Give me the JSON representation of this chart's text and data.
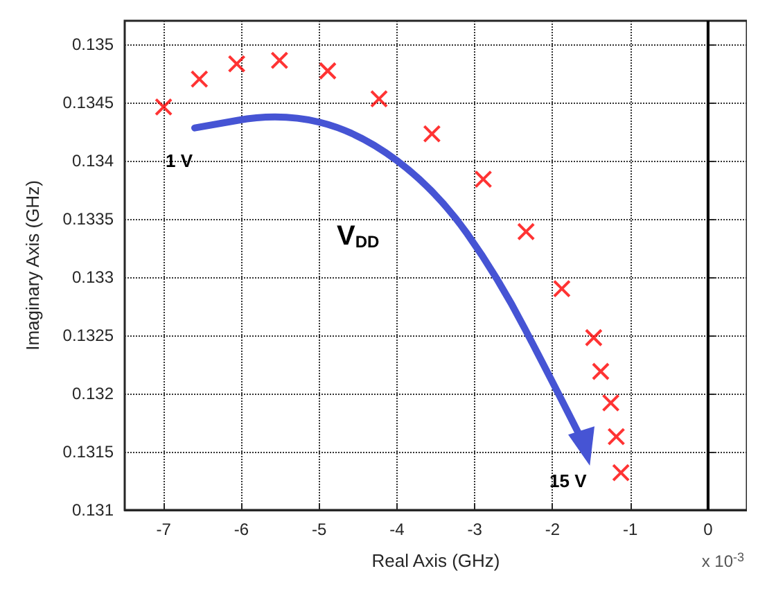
{
  "chart_data": {
    "type": "scatter",
    "xlabel": "Real Axis (GHz)",
    "ylabel": "Imaginary Axis (GHz)",
    "x": [
      -7,
      -6.54,
      -6.06,
      -5.51,
      -4.89,
      -4.23,
      -3.55,
      -2.89,
      -2.34,
      -1.88,
      -1.47,
      -1.38,
      -1.25,
      -1.18,
      -1.12
    ],
    "series": [
      {
        "color": "#ff0000",
        "values": [
          0.13446,
          0.1347,
          0.13483,
          0.13486,
          0.13477,
          0.13453,
          0.13423,
          0.13384,
          0.13339,
          0.1329,
          0.13248,
          0.13219,
          0.13192,
          0.13163,
          0.13132
        ]
      }
    ],
    "marker": "cross",
    "grid": true,
    "xlim": [
      -7.5,
      0.5
    ],
    "xticks": [
      -7,
      -6,
      -5,
      -4,
      -3,
      -2,
      -1,
      0
    ],
    "ylim": [
      0.131,
      0.1352
    ],
    "yticks": [
      0.131,
      0.1315,
      0.132,
      0.1325,
      0.133,
      0.1335,
      0.134,
      0.1345,
      0.135
    ],
    "ref_lines": [
      {
        "axis": "x",
        "value": 0,
        "color": "#000000",
        "line_style": "solid"
      }
    ],
    "annotations": [
      "1 V",
      "V$_{DD}$",
      "15 V",
      "x 10$^{-3}$"
    ]
  }
}
